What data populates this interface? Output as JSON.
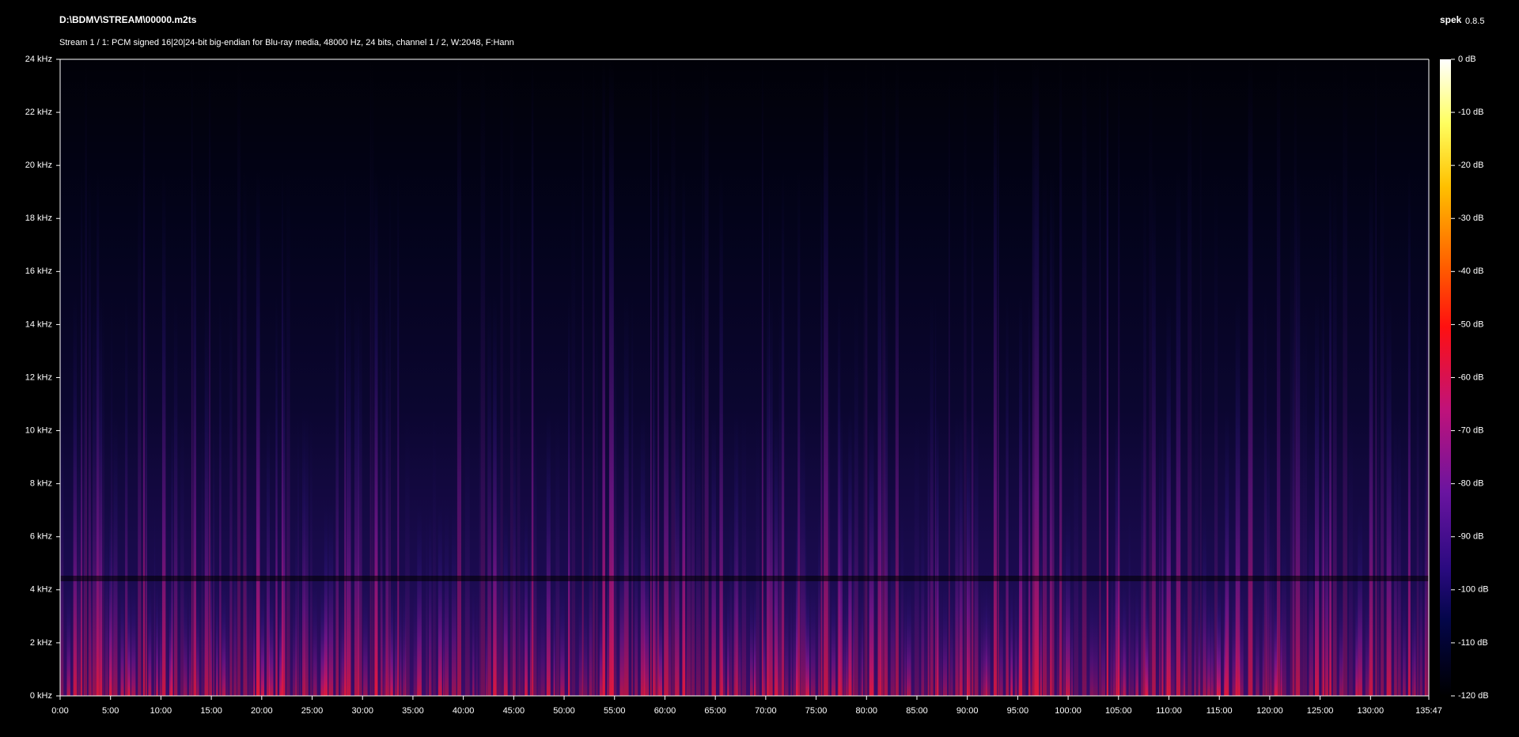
{
  "chart_data": {
    "type": "spectrogram",
    "title": "D:\\BDMV\\STREAM\\00000.m2ts",
    "subtitle": "Stream 1 / 1: PCM signed 16|20|24-bit big-endian for Blu-ray media, 48000 Hz, 24 bits, channel 1 / 2, W:2048, F:Hann",
    "app": "spek",
    "version": "0.8.5",
    "xlim": [
      0,
      8147
    ],
    "xticks": [
      {
        "value": 0,
        "label": "0:00"
      },
      {
        "value": 300,
        "label": "5:00"
      },
      {
        "value": 600,
        "label": "10:00"
      },
      {
        "value": 900,
        "label": "15:00"
      },
      {
        "value": 1200,
        "label": "20:00"
      },
      {
        "value": 1500,
        "label": "25:00"
      },
      {
        "value": 1800,
        "label": "30:00"
      },
      {
        "value": 2100,
        "label": "35:00"
      },
      {
        "value": 2400,
        "label": "40:00"
      },
      {
        "value": 2700,
        "label": "45:00"
      },
      {
        "value": 3000,
        "label": "50:00"
      },
      {
        "value": 3300,
        "label": "55:00"
      },
      {
        "value": 3600,
        "label": "60:00"
      },
      {
        "value": 3900,
        "label": "65:00"
      },
      {
        "value": 4200,
        "label": "70:00"
      },
      {
        "value": 4500,
        "label": "75:00"
      },
      {
        "value": 4800,
        "label": "80:00"
      },
      {
        "value": 5100,
        "label": "85:00"
      },
      {
        "value": 5400,
        "label": "90:00"
      },
      {
        "value": 5700,
        "label": "95:00"
      },
      {
        "value": 6000,
        "label": "100:00"
      },
      {
        "value": 6300,
        "label": "105:00"
      },
      {
        "value": 6600,
        "label": "110:00"
      },
      {
        "value": 6900,
        "label": "115:00"
      },
      {
        "value": 7200,
        "label": "120:00"
      },
      {
        "value": 7500,
        "label": "125:00"
      },
      {
        "value": 7800,
        "label": "130:00"
      },
      {
        "value": 8147,
        "label": "135:47"
      }
    ],
    "ylim": [
      0,
      24
    ],
    "yticks": [
      {
        "value": 0,
        "label": "0 kHz"
      },
      {
        "value": 2,
        "label": "2 kHz"
      },
      {
        "value": 4,
        "label": "4 kHz"
      },
      {
        "value": 6,
        "label": "6 kHz"
      },
      {
        "value": 8,
        "label": "8 kHz"
      },
      {
        "value": 10,
        "label": "10 kHz"
      },
      {
        "value": 12,
        "label": "12 kHz"
      },
      {
        "value": 14,
        "label": "14 kHz"
      },
      {
        "value": 16,
        "label": "16 kHz"
      },
      {
        "value": 18,
        "label": "18 kHz"
      },
      {
        "value": 20,
        "label": "20 kHz"
      },
      {
        "value": 22,
        "label": "22 kHz"
      },
      {
        "value": 24,
        "label": "24 kHz"
      }
    ],
    "zlim": [
      -120,
      0
    ],
    "zticks": [
      {
        "value": 0,
        "label": "0 dB"
      },
      {
        "value": -10,
        "label": "-10 dB"
      },
      {
        "value": -20,
        "label": "-20 dB"
      },
      {
        "value": -30,
        "label": "-30 dB"
      },
      {
        "value": -40,
        "label": "-40 dB"
      },
      {
        "value": -50,
        "label": "-50 dB"
      },
      {
        "value": -60,
        "label": "-60 dB"
      },
      {
        "value": -70,
        "label": "-70 dB"
      },
      {
        "value": -80,
        "label": "-80 dB"
      },
      {
        "value": -90,
        "label": "-90 dB"
      },
      {
        "value": -100,
        "label": "-100 dB"
      },
      {
        "value": -110,
        "label": "-110 dB"
      },
      {
        "value": -120,
        "label": "-120 dB"
      }
    ]
  }
}
